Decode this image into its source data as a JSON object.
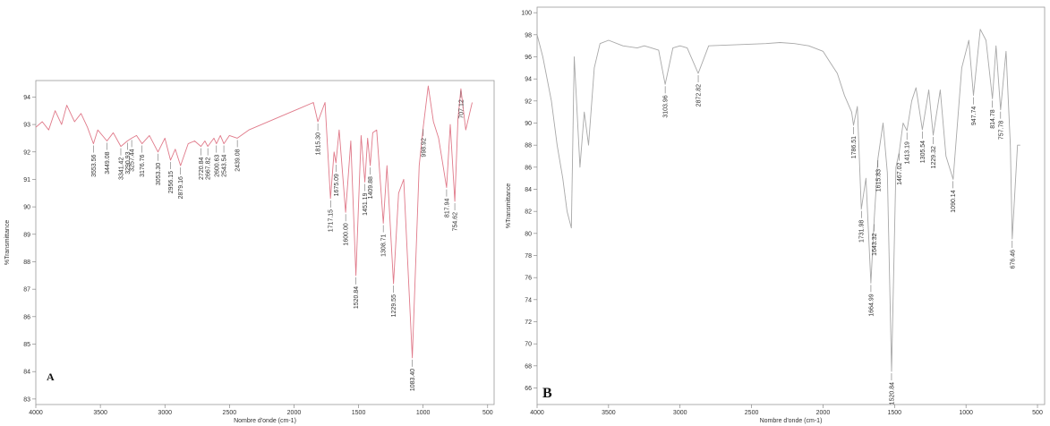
{
  "chart_data": [
    {
      "type": "line",
      "panel_label": "A",
      "xlabel": "Nombre d'onde (cm-1)",
      "ylabel": "%Transmittance",
      "xlim": [
        4000,
        450
      ],
      "ylim": [
        82.8,
        94.6
      ],
      "x_ticks": [
        4000,
        3500,
        3000,
        2500,
        2000,
        1500,
        1000,
        500
      ],
      "y_ticks": [
        83,
        84,
        85,
        86,
        87,
        88,
        89,
        90,
        91,
        92,
        93,
        94
      ],
      "grid": false,
      "line_color": "#e07a8a",
      "series": [
        {
          "x": [
            4000,
            3950,
            3900,
            3850,
            3800,
            3760,
            3700,
            3650,
            3600,
            3553.56,
            3520,
            3449.08,
            3400,
            3341.42,
            3290.93,
            3257.44,
            3220,
            3176.76,
            3120,
            3053.3,
            3000,
            2956.15,
            2920,
            2879.16,
            2820,
            2770,
            2720.84,
            2690,
            2667.82,
            2620,
            2600.63,
            2570,
            2543.54,
            2500,
            2439.08,
            2350,
            2250,
            2150,
            2050,
            1950,
            1850,
            1815.3,
            1760,
            1717.15,
            1690,
            1675.09,
            1650,
            1600.0,
            1560,
            1520.84,
            1480,
            1451.19,
            1430,
            1409.88,
            1390,
            1360,
            1308.71,
            1280,
            1229.55,
            1190,
            1150,
            1083.4,
            1030,
            998.92,
            960,
            920,
            880,
            817.94,
            790,
            754.62,
            730,
            707.12,
            670,
            620
          ],
          "y": [
            92.9,
            93.1,
            92.8,
            93.5,
            93.0,
            93.7,
            93.1,
            93.4,
            92.9,
            92.3,
            92.8,
            92.4,
            92.7,
            92.2,
            92.4,
            92.5,
            92.6,
            92.3,
            92.6,
            92.0,
            92.5,
            91.7,
            92.1,
            91.5,
            92.3,
            92.4,
            92.2,
            92.4,
            92.2,
            92.5,
            92.3,
            92.6,
            92.3,
            92.6,
            92.5,
            92.8,
            93.0,
            93.2,
            93.4,
            93.6,
            93.8,
            93.1,
            93.8,
            90.3,
            92.0,
            91.6,
            92.8,
            89.8,
            92.4,
            87.5,
            92.6,
            90.9,
            92.5,
            91.5,
            92.7,
            92.8,
            89.4,
            91.5,
            87.2,
            90.5,
            91.0,
            84.5,
            91.5,
            92.9,
            94.4,
            93.1,
            92.5,
            90.7,
            93.0,
            90.2,
            93.2,
            94.3,
            92.8,
            93.8
          ]
        }
      ],
      "peak_labels": [
        {
          "x": 3553.56,
          "y": 92.3,
          "label": "3553.56"
        },
        {
          "x": 3449.08,
          "y": 92.4,
          "label": "3449.08"
        },
        {
          "x": 3341.42,
          "y": 92.2,
          "label": "3341.42"
        },
        {
          "x": 3290.93,
          "y": 92.4,
          "label": "3290.93"
        },
        {
          "x": 3257.44,
          "y": 92.5,
          "label": "3257.44"
        },
        {
          "x": 3176.76,
          "y": 92.3,
          "label": "3176.76"
        },
        {
          "x": 3053.3,
          "y": 92.0,
          "label": "3053.30"
        },
        {
          "x": 2956.15,
          "y": 91.7,
          "label": "2956.15"
        },
        {
          "x": 2879.16,
          "y": 91.5,
          "label": "2879.16"
        },
        {
          "x": 2720.84,
          "y": 92.2,
          "label": "2720.84"
        },
        {
          "x": 2667.82,
          "y": 92.2,
          "label": "2667.82"
        },
        {
          "x": 2600.63,
          "y": 92.3,
          "label": "2600.63"
        },
        {
          "x": 2543.54,
          "y": 92.3,
          "label": "2543.54"
        },
        {
          "x": 2439.08,
          "y": 92.5,
          "label": "2439.08"
        },
        {
          "x": 1815.3,
          "y": 93.1,
          "label": "1815.30"
        },
        {
          "x": 1717.15,
          "y": 90.3,
          "label": "1717.15"
        },
        {
          "x": 1675.09,
          "y": 91.6,
          "label": "1675.09"
        },
        {
          "x": 1600.0,
          "y": 89.8,
          "label": "1600.00"
        },
        {
          "x": 1520.84,
          "y": 87.5,
          "label": "1520.84"
        },
        {
          "x": 1451.19,
          "y": 90.9,
          "label": "1451.19"
        },
        {
          "x": 1409.88,
          "y": 91.5,
          "label": "1409.88"
        },
        {
          "x": 1308.71,
          "y": 89.4,
          "label": "1308.71"
        },
        {
          "x": 1229.55,
          "y": 87.2,
          "label": "1229.55"
        },
        {
          "x": 1083.4,
          "y": 84.5,
          "label": "1083.40"
        },
        {
          "x": 998.92,
          "y": 92.9,
          "label": "998.92"
        },
        {
          "x": 817.94,
          "y": 90.7,
          "label": "817.94"
        },
        {
          "x": 754.62,
          "y": 90.2,
          "label": "754.62"
        },
        {
          "x": 707.12,
          "y": 94.3,
          "label": "707.12"
        }
      ]
    },
    {
      "type": "line",
      "panel_label": "B",
      "xlabel": "Nombre d'onde (cm-1)",
      "ylabel": "%Transmittance",
      "xlim": [
        4000,
        450
      ],
      "ylim": [
        64.5,
        100.5
      ],
      "x_ticks": [
        4000,
        3500,
        3000,
        2500,
        2000,
        1500,
        1000,
        500
      ],
      "y_ticks": [
        66,
        68,
        70,
        72,
        74,
        76,
        78,
        80,
        82,
        84,
        86,
        88,
        90,
        92,
        94,
        96,
        98,
        100
      ],
      "grid": false,
      "line_color": "#a8a8a8",
      "series": [
        {
          "x": [
            4000,
            3960,
            3900,
            3860,
            3820,
            3790,
            3760,
            3740,
            3700,
            3670,
            3640,
            3600,
            3560,
            3500,
            3400,
            3300,
            3250,
            3200,
            3150,
            3103.96,
            3050,
            3000,
            2950,
            2872.82,
            2800,
            2600,
            2400,
            2300,
            2200,
            2100,
            2000,
            1950,
            1900,
            1850,
            1800,
            1786.51,
            1760,
            1731.98,
            1700,
            1664.99,
            1643.32,
            1615.83,
            1580,
            1550,
            1520.84,
            1490,
            1467.02,
            1440,
            1413.19,
            1380,
            1350,
            1305.54,
            1260,
            1229.32,
            1180,
            1140,
            1090.14,
            1030,
            980,
            947.74,
            900,
            860,
            814.78,
            790,
            757.78,
            720,
            690,
            676.46,
            640,
            620
          ],
          "y": [
            98,
            96,
            92,
            88,
            85,
            82,
            80.5,
            96,
            86,
            91,
            88,
            95,
            97.2,
            97.5,
            97,
            96.8,
            97,
            96.8,
            96.6,
            93.5,
            96.8,
            97,
            96.8,
            94.5,
            97,
            97.1,
            97.2,
            97.3,
            97.2,
            97,
            96.5,
            95.5,
            94.5,
            92.5,
            91,
            89.8,
            91.5,
            82.2,
            85,
            75.5,
            81,
            86.8,
            90,
            85.5,
            67.5,
            86,
            87.4,
            90,
            89.3,
            92,
            93.2,
            89.4,
            93,
            88.9,
            93,
            87,
            84.9,
            95,
            97.5,
            92.5,
            98.5,
            97.5,
            92.2,
            97,
            91.2,
            96.5,
            88,
            79.5,
            88,
            88
          ]
        }
      ],
      "peak_labels": [
        {
          "x": 3103.96,
          "y": 93.5,
          "label": "3103.96"
        },
        {
          "x": 2872.82,
          "y": 94.5,
          "label": "2872.82"
        },
        {
          "x": 1786.51,
          "y": 89.8,
          "label": "1786.51"
        },
        {
          "x": 1731.98,
          "y": 82.2,
          "label": "1731.98"
        },
        {
          "x": 1664.99,
          "y": 75.5,
          "label": "1664.99"
        },
        {
          "x": 1643.32,
          "y": 81.0,
          "label": "1643.32"
        },
        {
          "x": 1615.83,
          "y": 86.8,
          "label": "1615.83"
        },
        {
          "x": 1520.84,
          "y": 67.5,
          "label": "1520.84"
        },
        {
          "x": 1467.02,
          "y": 87.4,
          "label": "1467.02"
        },
        {
          "x": 1413.19,
          "y": 89.3,
          "label": "1413.19"
        },
        {
          "x": 1305.54,
          "y": 89.4,
          "label": "1305.54"
        },
        {
          "x": 1229.32,
          "y": 88.9,
          "label": "1229.32"
        },
        {
          "x": 1090.14,
          "y": 84.9,
          "label": "1090.14"
        },
        {
          "x": 947.74,
          "y": 92.5,
          "label": "947.74"
        },
        {
          "x": 814.78,
          "y": 92.2,
          "label": "814.78"
        },
        {
          "x": 757.78,
          "y": 91.2,
          "label": "757.78"
        },
        {
          "x": 676.46,
          "y": 79.5,
          "label": "676.46"
        }
      ]
    }
  ]
}
